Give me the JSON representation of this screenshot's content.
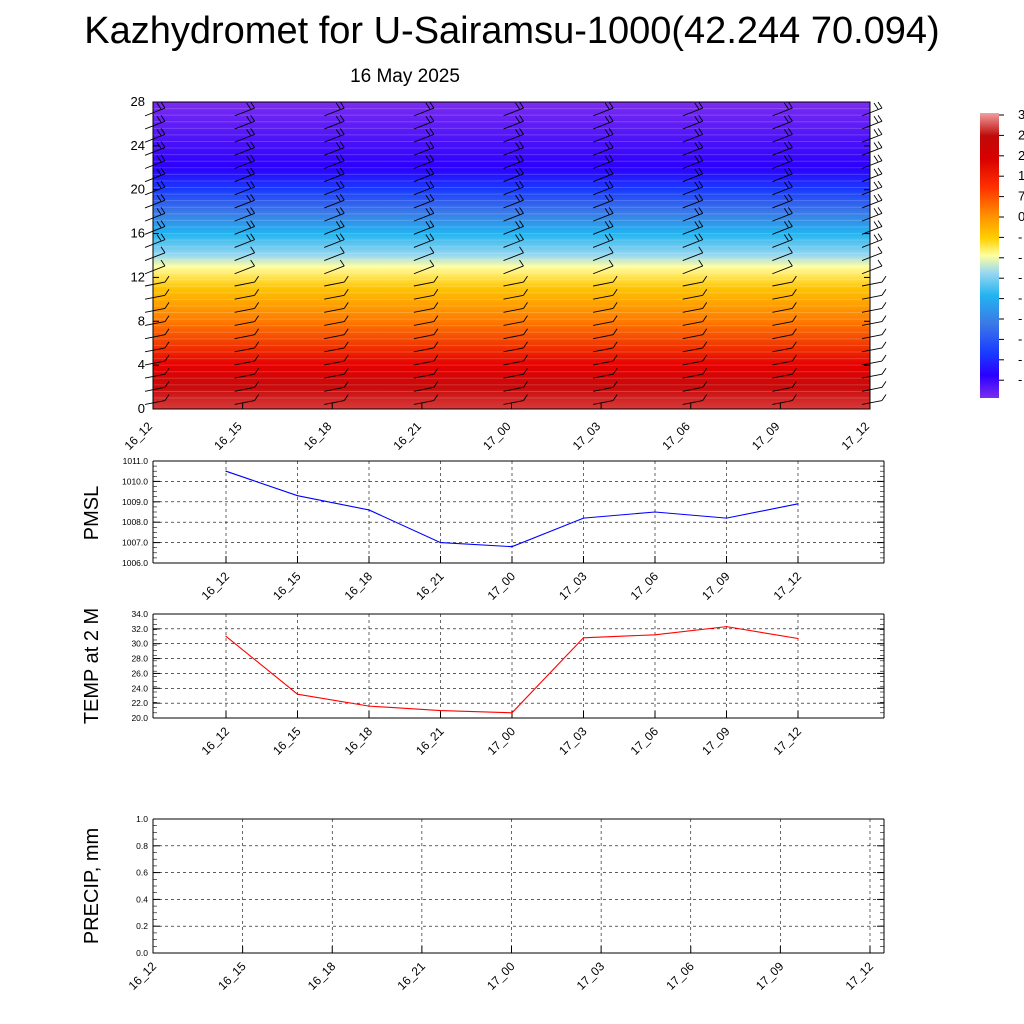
{
  "title": "Kazhydromet for U-Sairamsu-1000(42.244 70.094)",
  "date": "16 May 2025",
  "chart_data": [
    {
      "type": "heatmap",
      "x_tick_labels": [
        "16_12",
        "16_15",
        "16_18",
        "16_21",
        "17_00",
        "17_03",
        "17_06",
        "17_09",
        "17_12"
      ],
      "y_tick_labels": [
        "0",
        "4",
        "8",
        "12",
        "16",
        "20",
        "24",
        "28"
      ],
      "ylim": [
        0,
        28
      ],
      "colorbar_labels": [
        "3",
        "2",
        "2",
        "1",
        "7",
        "0",
        "-",
        "-",
        "-",
        "-",
        "-",
        "-",
        "-",
        "-"
      ],
      "field": {
        "y": [
          0,
          2,
          4,
          8,
          11,
          13,
          14,
          16,
          18,
          20,
          22,
          28
        ],
        "value": [
          30,
          28,
          24,
          14,
          6,
          0,
          -6,
          -14,
          -22,
          -30,
          -36,
          -40
        ]
      },
      "wind_barbs": true,
      "grid": false
    },
    {
      "type": "line",
      "ylabel": "PMSL",
      "categories": [
        "16_12",
        "16_15",
        "16_18",
        "16_21",
        "17_00",
        "17_03",
        "17_06",
        "17_09",
        "17_12"
      ],
      "values": [
        1010.5,
        1009.3,
        1008.6,
        1007.0,
        1006.8,
        1008.2,
        1008.5,
        1008.2,
        1008.9
      ],
      "ylim": [
        1006.0,
        1011.0
      ],
      "y_tick_labels": [
        "1006.0",
        "1007.0",
        "1008.0",
        "1009.0",
        "1010.0",
        "1011.0"
      ],
      "color": "#0000ff",
      "grid": true
    },
    {
      "type": "line",
      "ylabel": "TEMP at 2 M",
      "categories": [
        "16_12",
        "16_15",
        "16_18",
        "16_21",
        "17_00",
        "17_03",
        "17_06",
        "17_09",
        "17_12"
      ],
      "values": [
        31.0,
        23.2,
        21.6,
        21.0,
        20.7,
        30.8,
        31.2,
        32.3,
        30.7
      ],
      "ylim": [
        20.0,
        34.0
      ],
      "y_tick_labels": [
        "20.0",
        "22.0",
        "24.0",
        "26.0",
        "28.0",
        "30.0",
        "32.0",
        "34.0"
      ],
      "color": "#ff0000",
      "grid": true
    },
    {
      "type": "line",
      "ylabel": "PRECIP, mm",
      "categories": [
        "16_12",
        "16_15",
        "16_18",
        "16_21",
        "17_00",
        "17_03",
        "17_06",
        "17_09",
        "17_12"
      ],
      "values": [
        0,
        0,
        0,
        0,
        0,
        0,
        0,
        0,
        0
      ],
      "ylim": [
        0.0,
        1.0
      ],
      "y_tick_labels": [
        "0.0",
        "0.2",
        "0.4",
        "0.6",
        "0.8",
        "1.0"
      ],
      "color": "#008000",
      "grid": true
    }
  ]
}
